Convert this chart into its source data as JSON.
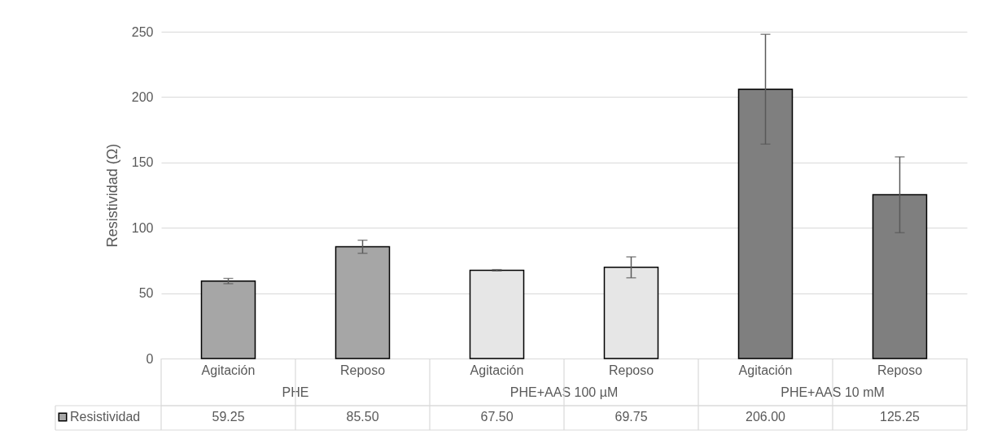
{
  "chart_data": {
    "type": "bar",
    "ylabel": "Resistividad (Ω)",
    "categories": [
      "Agitación",
      "Reposo",
      "Agitación",
      "Reposo",
      "Agitación",
      "Reposo"
    ],
    "annotations": [
      "PHE",
      "PHE+AAS 100 µM",
      "PHE+AAS 10 mM"
    ],
    "series": [
      {
        "name": "Resistividad",
        "colors": [
          "#a6a6a6",
          "#a6a6a6",
          "#e6e6e6",
          "#e6e6e6",
          "#7f7f7f",
          "#7f7f7f"
        ],
        "values": [
          59.25,
          85.5,
          67.5,
          69.75,
          206,
          125.25
        ],
        "errors": [
          2,
          5,
          0.5,
          8,
          42,
          29
        ],
        "value_labels": [
          "59.25",
          "85.50",
          "67.50",
          "69.75",
          "206.00",
          "125.25"
        ]
      }
    ],
    "ylim": [
      0,
      250
    ],
    "yticks": [
      0,
      50,
      100,
      150,
      200,
      250
    ],
    "grid": "y",
    "legend": "bottom left"
  }
}
